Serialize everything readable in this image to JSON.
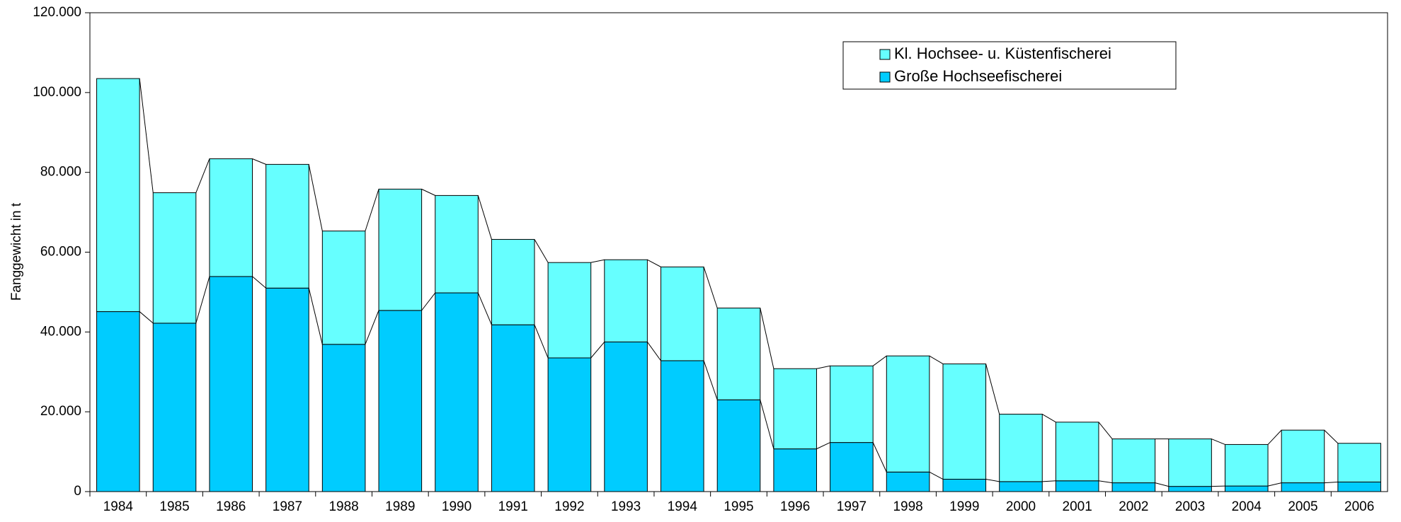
{
  "chart_data": {
    "type": "stacked_bar",
    "ylabel": "Fanggewicht in t",
    "categories": [
      "1984",
      "1985",
      "1986",
      "1987",
      "1988",
      "1989",
      "1990",
      "1991",
      "1992",
      "1993",
      "1994",
      "1995",
      "1996",
      "1997",
      "1998",
      "1999",
      "2000",
      "2001",
      "2002",
      "2003",
      "2004",
      "2005",
      "2006"
    ],
    "series": [
      {
        "name": "Große Hochseefischerei",
        "color": "#00ccff",
        "values": [
          45100,
          42200,
          53900,
          51000,
          36900,
          45400,
          49800,
          41800,
          33500,
          37500,
          32800,
          23000,
          10700,
          12300,
          4900,
          3100,
          2500,
          2700,
          2200,
          1300,
          1400,
          2200,
          2400
        ]
      },
      {
        "name": "Kl. Hochsee- u. Küstenfischerei",
        "color": "#66ffff",
        "values": [
          58400,
          32700,
          29500,
          31000,
          28400,
          30400,
          24400,
          21400,
          23900,
          20600,
          23500,
          23000,
          20100,
          19200,
          29100,
          28900,
          16900,
          14700,
          11000,
          11900,
          10400,
          13200,
          9700
        ]
      }
    ],
    "ylim": [
      0,
      120000
    ],
    "yticks": [
      0,
      {
        "value": 20000,
        "label": "20.000"
      },
      {
        "value": 40000,
        "label": "40.000"
      },
      {
        "value": 60000,
        "label": "60.000"
      },
      {
        "value": 80000,
        "label": "80.000"
      },
      {
        "value": 100000,
        "label": "100.000"
      },
      {
        "value": 120000,
        "label": "120.000"
      }
    ],
    "legend": "top-right"
  }
}
